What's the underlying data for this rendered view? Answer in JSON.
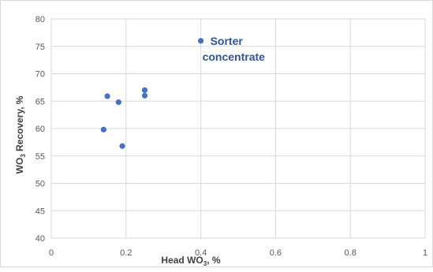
{
  "chart_data": {
    "type": "scatter",
    "title": "",
    "xlabel": "Head WO3, %",
    "ylabel": "WO3 Recovery, %",
    "xlim": [
      0,
      1
    ],
    "ylim": [
      40,
      80
    ],
    "x_ticks": [
      "0",
      "0.2",
      "0.4",
      "0.6",
      "0.8",
      "1"
    ],
    "y_ticks": [
      "40",
      "45",
      "50",
      "55",
      "60",
      "65",
      "70",
      "75",
      "80"
    ],
    "grid": true,
    "legend": false,
    "marker_color": "#4472c4",
    "grid_color": "#d9d9d9",
    "series": [
      {
        "points": [
          {
            "x": 0.14,
            "y": 59.8
          },
          {
            "x": 0.15,
            "y": 65.9
          },
          {
            "x": 0.18,
            "y": 64.8
          },
          {
            "x": 0.19,
            "y": 56.8
          },
          {
            "x": 0.25,
            "y": 67.0
          },
          {
            "x": 0.25,
            "y": 66.0
          },
          {
            "x": 0.4,
            "y": 76.0
          }
        ]
      }
    ],
    "annotations": [
      {
        "lines": [
          "Sorter",
          "concentrate"
        ],
        "x": 0.4,
        "y": 76.0
      }
    ]
  }
}
